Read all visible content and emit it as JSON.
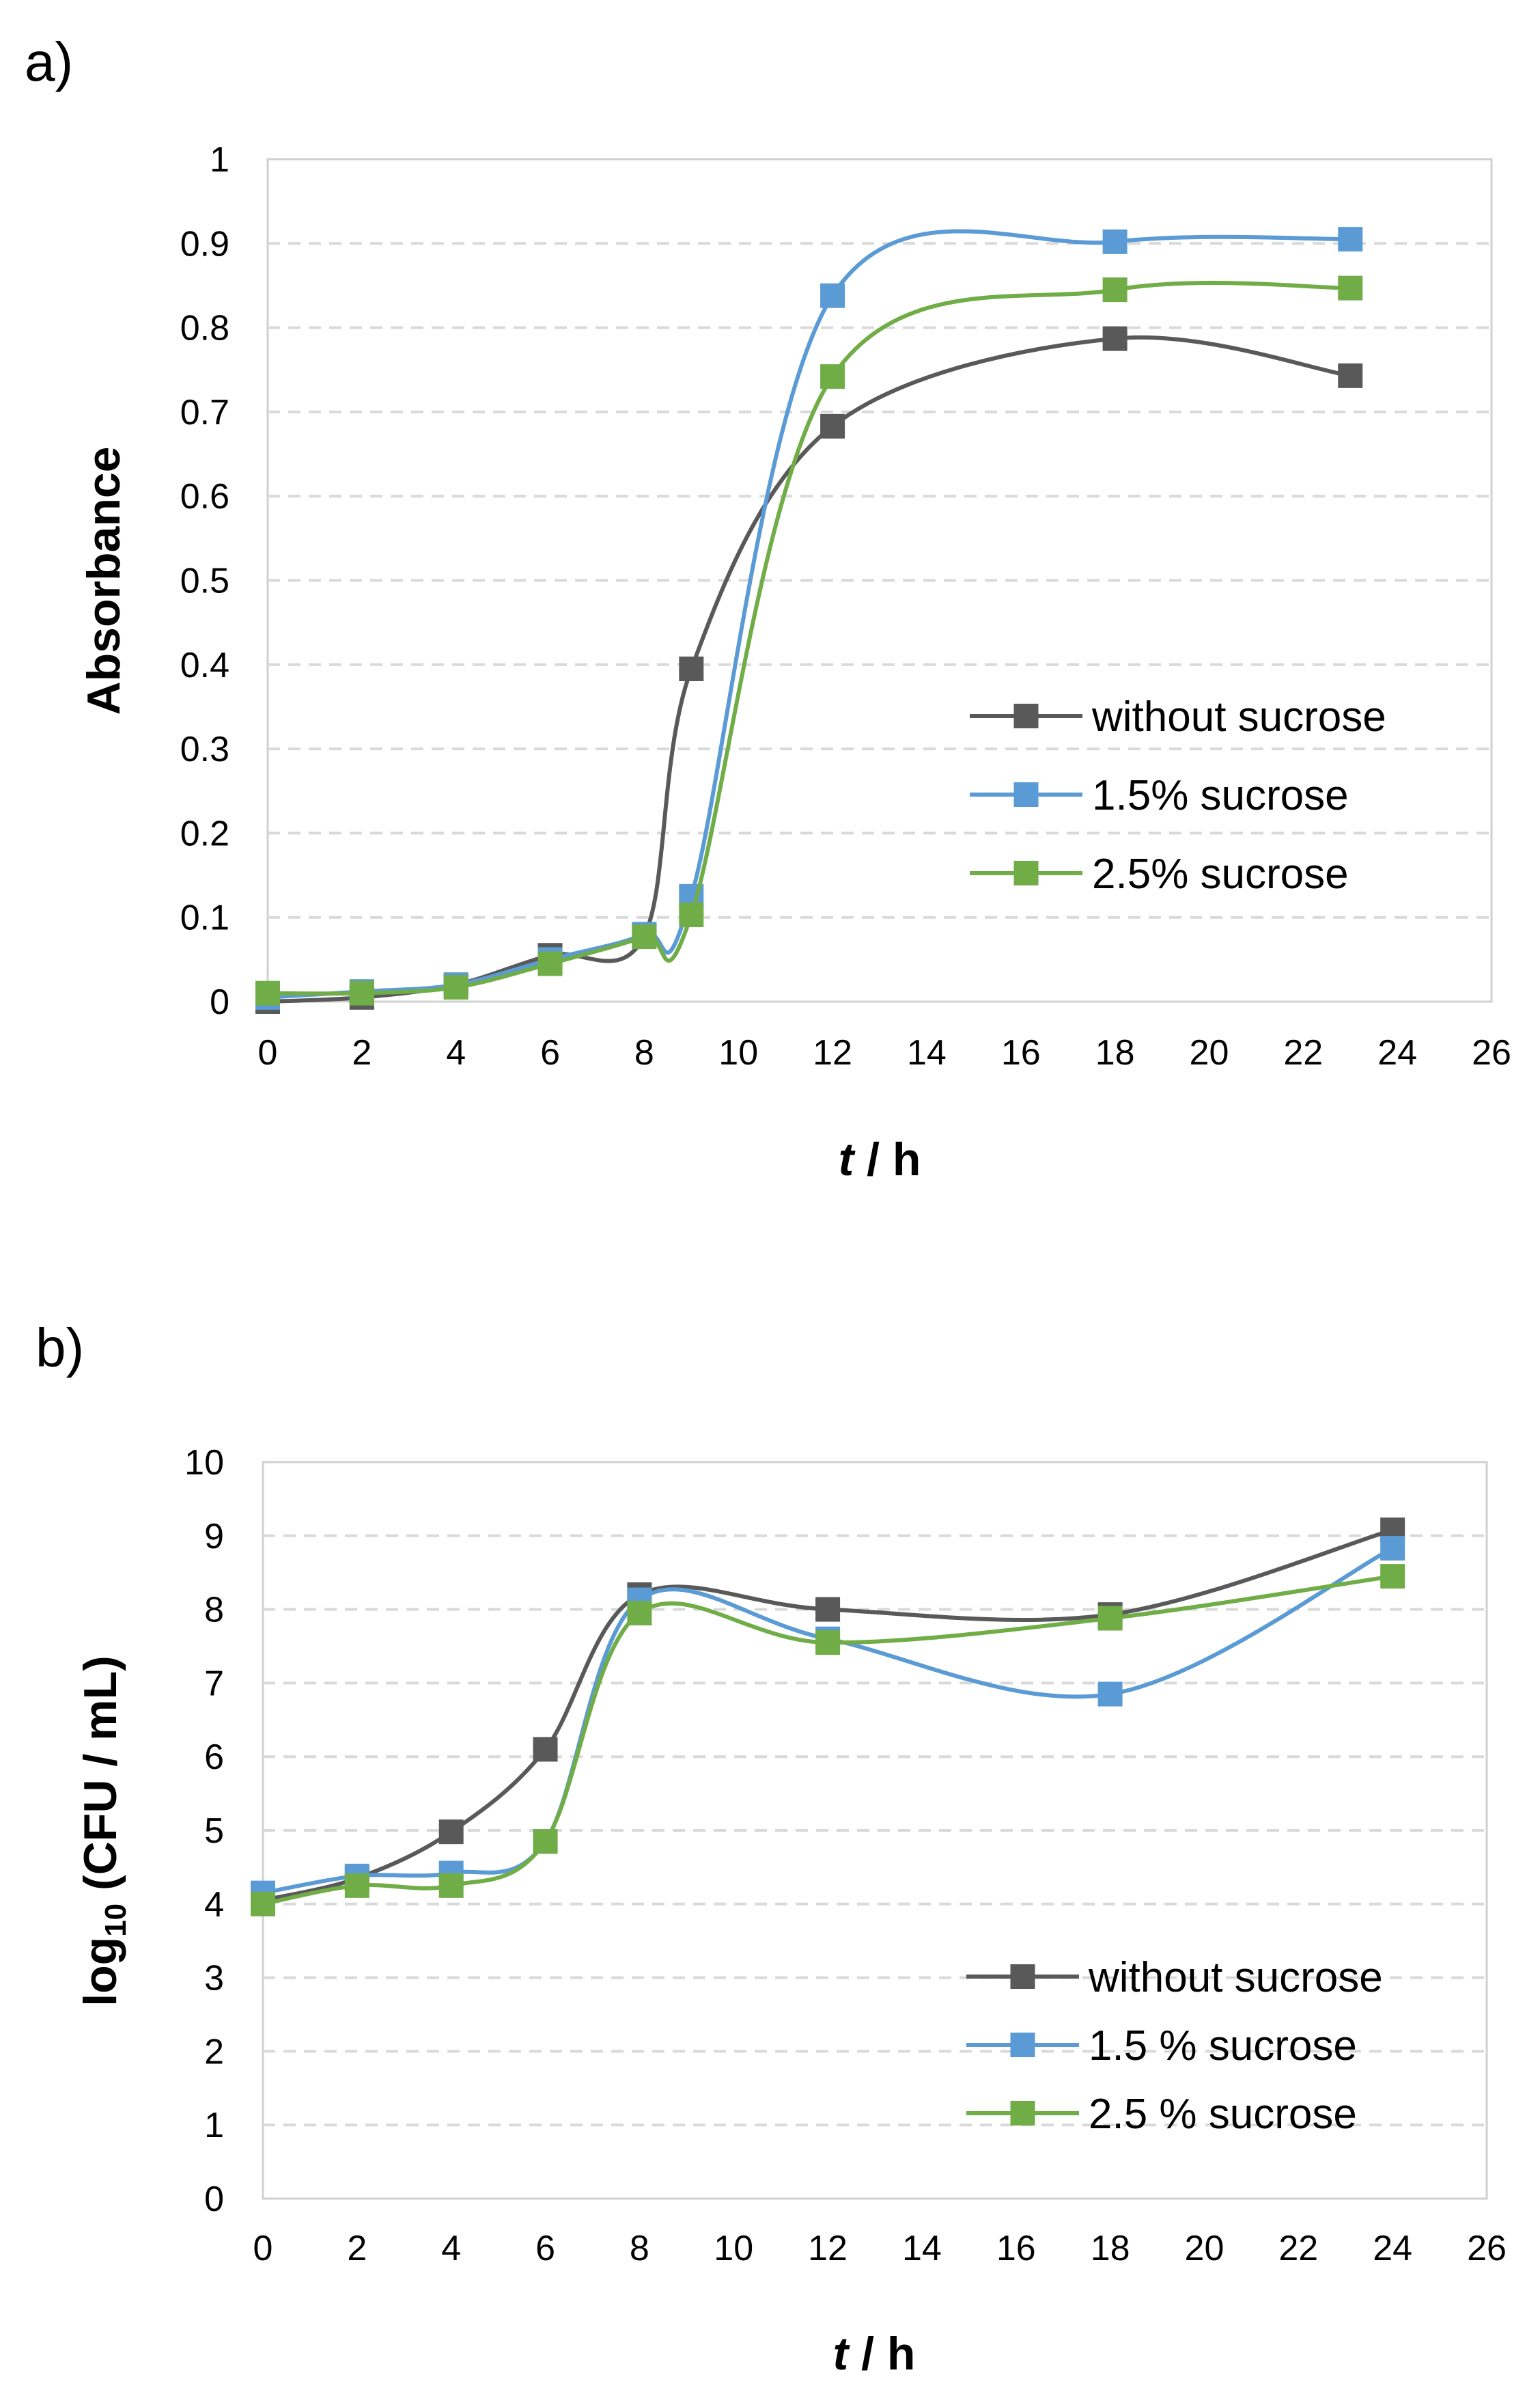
{
  "chart_data": [
    {
      "type": "line",
      "panel_label": "a)",
      "ylabel": "Absorbance",
      "xlabel": {
        "var": "t",
        "unit": " / h"
      },
      "xlim": [
        0,
        26
      ],
      "ylim": [
        0,
        1
      ],
      "x_ticks": [
        "0",
        "2",
        "4",
        "6",
        "8",
        "10",
        "12",
        "14",
        "16",
        "18",
        "20",
        "22",
        "24",
        "26"
      ],
      "y_ticks": [
        "0",
        "0.1",
        "0.2",
        "0.3",
        "0.4",
        "0.5",
        "0.6",
        "0.7",
        "0.8",
        "0.9",
        "1"
      ],
      "grid": "horizontal dashed",
      "legend_position": "bottom-right",
      "series": [
        {
          "name": "without sucrose",
          "color": "#595959",
          "x": [
            0,
            2,
            4,
            6,
            8,
            9,
            12,
            18,
            23
          ],
          "values": [
            0.0,
            0.005,
            0.02,
            0.055,
            0.078,
            0.395,
            0.683,
            0.787,
            0.743
          ]
        },
        {
          "name": "1.5% sucrose",
          "color": "#5b9bd5",
          "x": [
            0,
            2,
            4,
            6,
            8,
            9,
            12,
            18,
            23
          ],
          "values": [
            0.005,
            0.012,
            0.02,
            0.05,
            0.08,
            0.125,
            0.838,
            0.902,
            0.905
          ]
        },
        {
          "name": "2.5% sucrose",
          "color": "#70ad47",
          "x": [
            0,
            2,
            4,
            6,
            8,
            9,
            12,
            18,
            23
          ],
          "values": [
            0.01,
            0.01,
            0.017,
            0.045,
            0.077,
            0.103,
            0.742,
            0.845,
            0.847
          ]
        }
      ]
    },
    {
      "type": "line",
      "panel_label": "b)",
      "ylabel": {
        "main": "log",
        "sub": "10",
        "rest": " (CFU / mL)"
      },
      "xlabel": {
        "var": "t",
        "unit": " / h"
      },
      "xlim": [
        0,
        26
      ],
      "ylim": [
        0,
        10
      ],
      "x_ticks": [
        "0",
        "2",
        "4",
        "6",
        "8",
        "10",
        "12",
        "14",
        "16",
        "18",
        "20",
        "22",
        "24",
        "26"
      ],
      "y_ticks": [
        "0",
        "1",
        "2",
        "3",
        "4",
        "5",
        "6",
        "7",
        "8",
        "9",
        "10"
      ],
      "grid": "horizontal dashed",
      "legend_position": "bottom-right",
      "series": [
        {
          "name": "without sucrose",
          "color": "#595959",
          "x": [
            0,
            2,
            4,
            6,
            8,
            12,
            18,
            24
          ],
          "values": [
            4.05,
            4.35,
            4.98,
            6.1,
            8.2,
            8.0,
            7.93,
            9.08
          ]
        },
        {
          "name": "1.5 % sucrose",
          "color": "#5b9bd5",
          "x": [
            0,
            2,
            4,
            6,
            8,
            12,
            18,
            24
          ],
          "values": [
            4.15,
            4.38,
            4.42,
            4.85,
            8.13,
            7.6,
            6.85,
            8.83
          ]
        },
        {
          "name": "2.5 % sucrose",
          "color": "#70ad47",
          "x": [
            0,
            2,
            4,
            6,
            8,
            12,
            18,
            24
          ],
          "values": [
            4.0,
            4.25,
            4.25,
            4.85,
            7.95,
            7.55,
            7.88,
            8.45
          ]
        }
      ]
    }
  ]
}
